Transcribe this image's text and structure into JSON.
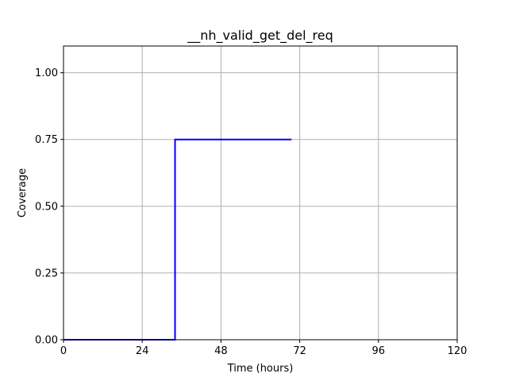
{
  "chart_data": {
    "type": "line",
    "title": "__nh_valid_get_del_req",
    "xlabel": "Time (hours)",
    "ylabel": "Coverage",
    "xlim": [
      0,
      120
    ],
    "ylim": [
      0,
      1.1
    ],
    "x_ticks": [
      0,
      24,
      48,
      72,
      96,
      120
    ],
    "y_ticks": [
      0.0,
      0.25,
      0.5,
      0.75,
      1.0
    ],
    "x_tick_labels": [
      "0",
      "24",
      "48",
      "72",
      "96",
      "120"
    ],
    "y_tick_labels": [
      "0.00",
      "0.25",
      "0.50",
      "0.75",
      "1.00"
    ],
    "grid": true,
    "series": [
      {
        "color": "#0000ff",
        "step": true,
        "x": [
          0,
          34,
          34,
          69.5
        ],
        "y": [
          0,
          0,
          0.75,
          0.75
        ]
      }
    ]
  }
}
